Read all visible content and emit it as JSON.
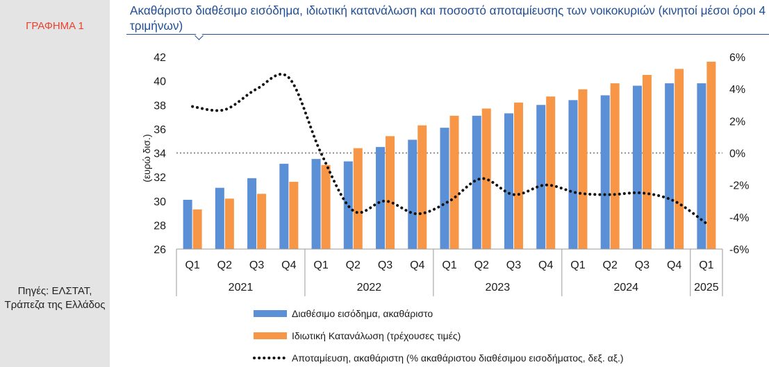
{
  "sidebar": {
    "figure_label": "ΓΡΑΦΗΜΑ 1",
    "sources": "Πηγές: ΕΛΣΤΑΤ, Τράπεζα της Ελλάδος"
  },
  "chart_data": {
    "type": "bar",
    "title": "Ακαθάριστο διαθέσιμο εισόδημα, ιδιωτική κατανάλωση και ποσοστό αποταμίευσης των νοικοκυριών (κινητοί μέσοι όροι 4 τριμήνων)",
    "ylabel": "(ευρώ δισ.)",
    "categories": [
      "Q1",
      "Q2",
      "Q3",
      "Q4",
      "Q1",
      "Q2",
      "Q3",
      "Q4",
      "Q1",
      "Q2",
      "Q3",
      "Q4",
      "Q1",
      "Q2",
      "Q3",
      "Q4",
      "Q1"
    ],
    "years": [
      {
        "label": "2021",
        "span": 4
      },
      {
        "label": "2022",
        "span": 4
      },
      {
        "label": "2023",
        "span": 4
      },
      {
        "label": "2024",
        "span": 4
      },
      {
        "label": "2025",
        "span": 1
      }
    ],
    "ylim": [
      26,
      42
    ],
    "yticks": [
      26,
      28,
      30,
      32,
      34,
      36,
      38,
      40,
      42
    ],
    "y2lim": [
      -6,
      6
    ],
    "y2ticks": [
      "-6%",
      "-4%",
      "-2%",
      "0%",
      "2%",
      "4%",
      "6%"
    ],
    "series": [
      {
        "name": "Διαθέσιμο εισόδημα, ακαθάριστο",
        "kind": "bar",
        "axis": "left",
        "color": "#5b8fd6",
        "values": [
          30.1,
          31.1,
          31.9,
          33.1,
          33.5,
          33.3,
          34.5,
          35.1,
          36.1,
          37.1,
          37.3,
          38.0,
          38.4,
          38.8,
          39.6,
          39.8,
          39.8
        ]
      },
      {
        "name": "Ιδιωτική Κατανάλωση (τρέχουσες τιμές)",
        "kind": "bar",
        "axis": "left",
        "color": "#f79646",
        "values": [
          29.3,
          30.2,
          30.6,
          31.6,
          33.0,
          34.4,
          35.4,
          36.3,
          37.1,
          37.7,
          38.2,
          38.7,
          39.3,
          39.8,
          40.5,
          41.0,
          41.6
        ]
      },
      {
        "name": "Αποταμίευση, ακαθάριστη (% ακαθάριστου διαθέσιμου εισοδήματος, δεξ. αξ.)",
        "kind": "line",
        "axis": "right",
        "color": "#111111",
        "values": [
          2.9,
          2.7,
          4.0,
          4.7,
          0.0,
          -3.6,
          -3.0,
          -3.8,
          -3.0,
          -1.6,
          -2.6,
          -2.0,
          -2.5,
          -2.6,
          -2.5,
          -3.0,
          -4.4
        ]
      }
    ],
    "zero_line": true,
    "legend_position": "bottom"
  }
}
